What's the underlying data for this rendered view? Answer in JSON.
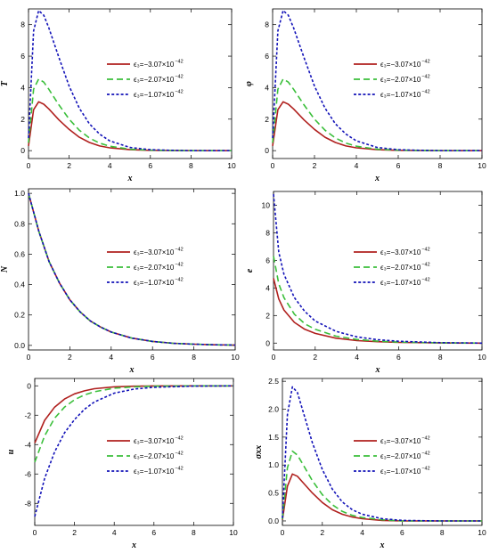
{
  "colors": {
    "series_1": "#b0201e",
    "series_2": "#3bbf3b",
    "series_3": "#1212b8"
  },
  "legend": {
    "labels": [
      "ϵ₃=−3.07×10",
      "ϵ₃=−2.07×10",
      "ϵ₃=−1.07×10"
    ],
    "exponent": "−42"
  },
  "chart_data": [
    {
      "type": "line",
      "title": "",
      "xlabel": "x",
      "ylabel": "T",
      "xlim": [
        0,
        10
      ],
      "ylim": [
        -0.5,
        9
      ],
      "xticks": [
        0,
        2,
        4,
        6,
        8,
        10
      ],
      "yticks": [
        0,
        2,
        4,
        6,
        8
      ],
      "legend_position": "right",
      "series": [
        {
          "name": "ϵ₃=−3.07×10⁻⁴²",
          "x": [
            0,
            0.25,
            0.5,
            0.75,
            1,
            1.5,
            2,
            2.5,
            3,
            3.5,
            4,
            5,
            6,
            7,
            8,
            10
          ],
          "y": [
            0.3,
            2.6,
            3.1,
            2.95,
            2.65,
            1.95,
            1.35,
            0.85,
            0.52,
            0.3,
            0.18,
            0.06,
            0.02,
            0.01,
            0,
            0
          ]
        },
        {
          "name": "ϵ₃=−2.07×10⁻⁴²",
          "x": [
            0,
            0.25,
            0.5,
            0.75,
            1,
            1.5,
            2,
            2.5,
            3,
            3.5,
            4,
            5,
            6,
            7,
            8,
            10
          ],
          "y": [
            0.5,
            3.9,
            4.55,
            4.35,
            3.9,
            2.9,
            2.0,
            1.3,
            0.8,
            0.48,
            0.28,
            0.09,
            0.03,
            0.01,
            0,
            0
          ]
        },
        {
          "name": "ϵ₃=−1.07×10⁻⁴²",
          "x": [
            0,
            0.25,
            0.5,
            0.75,
            1,
            1.5,
            2,
            2.5,
            3,
            3.5,
            4,
            5,
            6,
            7,
            8,
            10
          ],
          "y": [
            0.8,
            7.6,
            8.9,
            8.6,
            7.8,
            5.9,
            4.1,
            2.7,
            1.7,
            1.05,
            0.62,
            0.2,
            0.06,
            0.02,
            0,
            0
          ]
        }
      ]
    },
    {
      "type": "line",
      "title": "",
      "xlabel": "x",
      "ylabel": "φ",
      "xlim": [
        0,
        10
      ],
      "ylim": [
        -0.5,
        9
      ],
      "xticks": [
        0,
        2,
        4,
        6,
        8,
        10
      ],
      "yticks": [
        0,
        2,
        4,
        6,
        8
      ],
      "legend_position": "right",
      "series": [
        {
          "name": "ϵ₃=−3.07×10⁻⁴²",
          "x": [
            0,
            0.25,
            0.5,
            0.75,
            1,
            1.5,
            2,
            2.5,
            3,
            3.5,
            4,
            5,
            6,
            7,
            8,
            10
          ],
          "y": [
            0.3,
            2.6,
            3.1,
            2.95,
            2.65,
            1.95,
            1.35,
            0.85,
            0.52,
            0.3,
            0.18,
            0.06,
            0.02,
            0.01,
            0,
            0
          ]
        },
        {
          "name": "ϵ₃=−2.07×10⁻⁴²",
          "x": [
            0,
            0.25,
            0.5,
            0.75,
            1,
            1.5,
            2,
            2.5,
            3,
            3.5,
            4,
            5,
            6,
            7,
            8,
            10
          ],
          "y": [
            0.5,
            3.9,
            4.55,
            4.35,
            3.9,
            2.9,
            2.0,
            1.3,
            0.8,
            0.48,
            0.28,
            0.09,
            0.03,
            0.01,
            0,
            0
          ]
        },
        {
          "name": "ϵ₃=−1.07×10⁻⁴²",
          "x": [
            0,
            0.25,
            0.5,
            0.75,
            1,
            1.5,
            2,
            2.5,
            3,
            3.5,
            4,
            5,
            6,
            7,
            8,
            10
          ],
          "y": [
            0.8,
            7.6,
            8.9,
            8.6,
            7.8,
            5.9,
            4.1,
            2.7,
            1.7,
            1.05,
            0.62,
            0.2,
            0.06,
            0.02,
            0,
            0
          ]
        }
      ]
    },
    {
      "type": "line",
      "title": "",
      "xlabel": "x",
      "ylabel": "N",
      "xlim": [
        0,
        10
      ],
      "ylim": [
        -0.03,
        1.03
      ],
      "xticks": [
        0,
        2,
        4,
        6,
        8,
        10
      ],
      "yticks": [
        0.0,
        0.2,
        0.4,
        0.6,
        0.8,
        1.0
      ],
      "ytick_labels": [
        "0.0",
        "0.2",
        "0.4",
        "0.6",
        "0.8",
        "1.0"
      ],
      "legend_position": "right",
      "series": [
        {
          "name": "ϵ₃=−3.07×10⁻⁴²",
          "x": [
            0,
            0.5,
            1,
            1.5,
            2,
            2.5,
            3,
            3.5,
            4,
            5,
            6,
            7,
            8,
            9,
            10
          ],
          "y": [
            1.0,
            0.75,
            0.55,
            0.41,
            0.3,
            0.22,
            0.16,
            0.12,
            0.088,
            0.048,
            0.026,
            0.014,
            0.008,
            0.004,
            0.002
          ]
        },
        {
          "name": "ϵ₃=−2.07×10⁻⁴²",
          "x": [
            0,
            0.5,
            1,
            1.5,
            2,
            2.5,
            3,
            3.5,
            4,
            5,
            6,
            7,
            8,
            9,
            10
          ],
          "y": [
            1.0,
            0.75,
            0.55,
            0.41,
            0.3,
            0.22,
            0.16,
            0.12,
            0.088,
            0.048,
            0.026,
            0.014,
            0.008,
            0.004,
            0.002
          ]
        },
        {
          "name": "ϵ₃=−1.07×10⁻⁴²",
          "x": [
            0,
            0.5,
            1,
            1.5,
            2,
            2.5,
            3,
            3.5,
            4,
            5,
            6,
            7,
            8,
            9,
            10
          ],
          "y": [
            1.0,
            0.75,
            0.55,
            0.41,
            0.3,
            0.22,
            0.16,
            0.12,
            0.088,
            0.048,
            0.026,
            0.014,
            0.008,
            0.004,
            0.002
          ]
        }
      ]
    },
    {
      "type": "line",
      "title": "",
      "xlabel": "x",
      "ylabel": "e",
      "xlim": [
        0,
        10
      ],
      "ylim": [
        -0.5,
        11
      ],
      "xticks": [
        0,
        2,
        4,
        6,
        8,
        10
      ],
      "yticks": [
        0,
        2,
        4,
        6,
        8,
        10
      ],
      "legend_position": "right",
      "series": [
        {
          "name": "ϵ₃=−3.07×10⁻⁴²",
          "x": [
            0,
            0.25,
            0.5,
            1,
            1.5,
            2,
            3,
            4,
            5,
            6,
            8,
            10
          ],
          "y": [
            4.7,
            3.2,
            2.4,
            1.5,
            1.0,
            0.7,
            0.35,
            0.18,
            0.1,
            0.05,
            0.01,
            0
          ]
        },
        {
          "name": "ϵ₃=−2.07×10⁻⁴²",
          "x": [
            0,
            0.25,
            0.5,
            1,
            1.5,
            2,
            3,
            4,
            5,
            6,
            8,
            10
          ],
          "y": [
            6.3,
            4.3,
            3.3,
            2.1,
            1.4,
            1.0,
            0.5,
            0.26,
            0.14,
            0.07,
            0.02,
            0
          ]
        },
        {
          "name": "ϵ₃=−1.07×10⁻⁴²",
          "x": [
            0,
            0.25,
            0.5,
            1,
            1.5,
            2,
            3,
            4,
            5,
            6,
            8,
            10
          ],
          "y": [
            10.8,
            6.6,
            5.0,
            3.3,
            2.3,
            1.6,
            0.85,
            0.45,
            0.24,
            0.13,
            0.03,
            0
          ]
        }
      ]
    },
    {
      "type": "line",
      "title": "",
      "xlabel": "x",
      "ylabel": "u",
      "xlim": [
        0,
        10
      ],
      "ylim": [
        -9.5,
        0.5
      ],
      "xticks": [
        0,
        2,
        4,
        6,
        8,
        10
      ],
      "yticks": [
        -8,
        -6,
        -4,
        -2,
        0
      ],
      "ytick_labels": [
        "-8",
        "-6",
        "-4",
        "-2",
        "0"
      ],
      "legend_position": "right",
      "series": [
        {
          "name": "ϵ₃=−3.07×10⁻⁴²",
          "x": [
            0,
            0.5,
            1,
            1.5,
            2,
            2.5,
            3,
            4,
            5,
            6,
            8,
            10
          ],
          "y": [
            -3.9,
            -2.35,
            -1.45,
            -0.9,
            -0.55,
            -0.34,
            -0.2,
            -0.07,
            -0.03,
            -0.01,
            0,
            0
          ]
        },
        {
          "name": "ϵ₃=−2.07×10⁻⁴²",
          "x": [
            0,
            0.5,
            1,
            1.5,
            2,
            2.5,
            3,
            4,
            5,
            6,
            8,
            10
          ],
          "y": [
            -5.2,
            -3.4,
            -2.2,
            -1.45,
            -0.95,
            -0.62,
            -0.4,
            -0.16,
            -0.07,
            -0.03,
            0,
            0
          ]
        },
        {
          "name": "ϵ₃=−1.07×10⁻⁴²",
          "x": [
            0,
            0.5,
            1,
            1.5,
            2,
            2.5,
            3,
            4,
            5,
            6,
            8,
            10
          ],
          "y": [
            -8.9,
            -6.3,
            -4.5,
            -3.2,
            -2.3,
            -1.6,
            -1.1,
            -0.5,
            -0.22,
            -0.1,
            -0.02,
            0
          ]
        }
      ]
    },
    {
      "type": "line",
      "title": "",
      "xlabel": "x",
      "ylabel": "σxx",
      "xlim": [
        0,
        10
      ],
      "ylim": [
        -0.08,
        2.55
      ],
      "xticks": [
        0,
        2,
        4,
        6,
        8,
        10
      ],
      "yticks": [
        0.0,
        0.5,
        1.0,
        1.5,
        2.0,
        2.5
      ],
      "ytick_labels": [
        "0.0",
        "0.5",
        "1.0",
        "1.5",
        "2.0",
        "2.5"
      ],
      "legend_position": "right",
      "series": [
        {
          "name": "ϵ₃=−3.07×10⁻⁴²",
          "x": [
            0,
            0.25,
            0.5,
            0.75,
            1,
            1.5,
            2,
            2.5,
            3,
            3.5,
            4,
            5,
            6,
            8,
            10
          ],
          "y": [
            0.02,
            0.62,
            0.84,
            0.8,
            0.7,
            0.5,
            0.33,
            0.2,
            0.12,
            0.07,
            0.04,
            0.01,
            0,
            0,
            0
          ]
        },
        {
          "name": "ϵ₃=−2.07×10⁻⁴²",
          "x": [
            0,
            0.25,
            0.5,
            0.75,
            1,
            1.5,
            2,
            2.5,
            3,
            3.5,
            4,
            5,
            6,
            8,
            10
          ],
          "y": [
            0.03,
            0.95,
            1.25,
            1.18,
            1.03,
            0.72,
            0.47,
            0.29,
            0.17,
            0.1,
            0.06,
            0.02,
            0,
            0,
            0
          ]
        },
        {
          "name": "ϵ₃=−1.07×10⁻⁴²",
          "x": [
            0,
            0.25,
            0.5,
            0.75,
            1,
            1.5,
            2,
            2.5,
            3,
            3.5,
            4,
            5,
            6,
            8,
            10
          ],
          "y": [
            0.05,
            1.9,
            2.4,
            2.3,
            2.0,
            1.4,
            0.92,
            0.57,
            0.34,
            0.2,
            0.12,
            0.04,
            0.01,
            0,
            0
          ]
        }
      ]
    }
  ]
}
